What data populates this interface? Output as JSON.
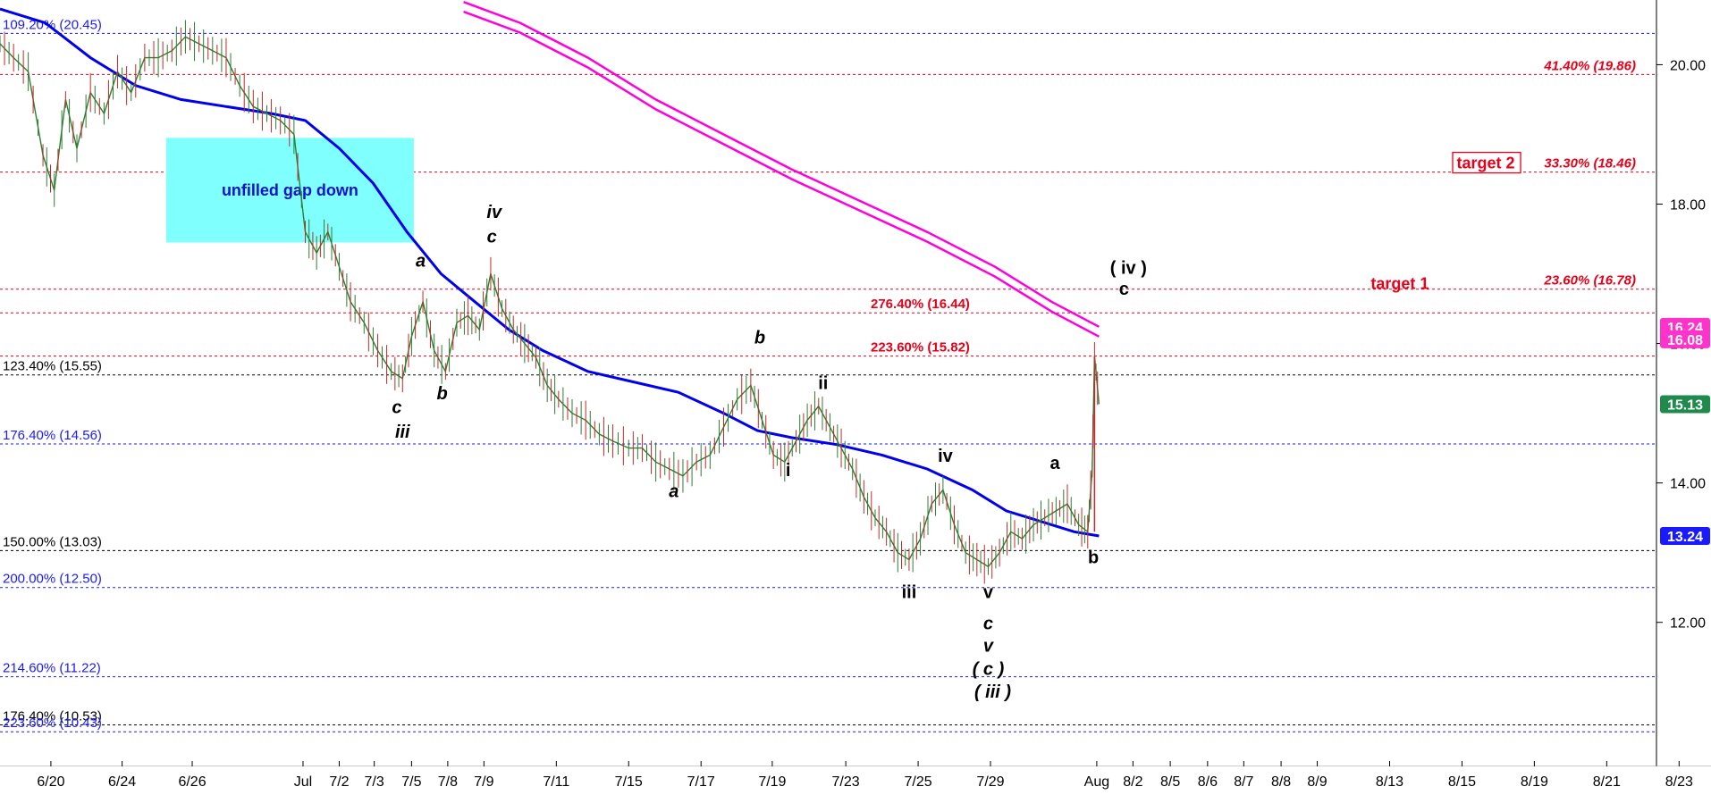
{
  "chart_data": {
    "type": "line",
    "xlim": [
      0,
      1510
    ],
    "ylim": [
      10.3,
      20.8
    ],
    "x_ticks": [
      {
        "x": 45,
        "label": "6/20"
      },
      {
        "x": 108,
        "label": "6/24"
      },
      {
        "x": 170,
        "label": "6/26"
      },
      {
        "x": 268,
        "label": "Jul"
      },
      {
        "x": 300,
        "label": "7/2"
      },
      {
        "x": 331,
        "label": "7/3"
      },
      {
        "x": 364,
        "label": "7/5"
      },
      {
        "x": 396,
        "label": "7/8"
      },
      {
        "x": 428,
        "label": "7/9"
      },
      {
        "x": 492,
        "label": "7/11"
      },
      {
        "x": 556,
        "label": "7/15"
      },
      {
        "x": 620,
        "label": "7/17"
      },
      {
        "x": 683,
        "label": "7/19"
      },
      {
        "x": 748,
        "label": "7/23"
      },
      {
        "x": 812,
        "label": "7/25"
      },
      {
        "x": 876,
        "label": "7/29"
      },
      {
        "x": 970,
        "label": "Aug"
      },
      {
        "x": 1002,
        "label": "8/2"
      },
      {
        "x": 1035,
        "label": "8/5"
      },
      {
        "x": 1068,
        "label": "8/6"
      },
      {
        "x": 1100,
        "label": "8/7"
      },
      {
        "x": 1133,
        "label": "8/8"
      },
      {
        "x": 1165,
        "label": "8/9"
      },
      {
        "x": 1229,
        "label": "8/13"
      },
      {
        "x": 1293,
        "label": "8/15"
      },
      {
        "x": 1357,
        "label": "8/19"
      },
      {
        "x": 1421,
        "label": "8/21"
      },
      {
        "x": 1485,
        "label": "8/23"
      }
    ],
    "y_ticks": [
      {
        "y": 20.0,
        "label": "20.00"
      },
      {
        "y": 18.0,
        "label": "18.00"
      },
      {
        "y": 16.0,
        "label": "16.00"
      },
      {
        "y": 14.0,
        "label": "14.00"
      },
      {
        "y": 12.0,
        "label": "12.00"
      }
    ],
    "fib_levels": [
      {
        "y": 20.45,
        "label": "109.20% (20.45)",
        "color": "#1a1aff",
        "side": "left",
        "italic": false
      },
      {
        "y": 19.86,
        "label": "41.40% (19.86)",
        "color": "#e8001a",
        "side": "right",
        "italic": true
      },
      {
        "y": 18.46,
        "label": "33.30% (18.46)",
        "color": "#e8001a",
        "side": "right",
        "italic": true
      },
      {
        "y": 16.78,
        "label": "23.60% (16.78)",
        "color": "#e8001a",
        "side": "right",
        "italic": true
      },
      {
        "y": 16.44,
        "label": "276.40% (16.44)",
        "color": "#e8001a",
        "side": "mid",
        "italic": false
      },
      {
        "y": 15.82,
        "label": "223.60% (15.82)",
        "color": "#e8001a",
        "side": "mid",
        "italic": false
      },
      {
        "y": 15.55,
        "label": "123.40% (15.55)",
        "color": "#000000",
        "side": "left",
        "italic": false
      },
      {
        "y": 14.56,
        "label": "176.40% (14.56)",
        "color": "#1a1aff",
        "side": "left",
        "italic": false
      },
      {
        "y": 13.03,
        "label": "150.00% (13.03)",
        "color": "#000000",
        "side": "left",
        "italic": false
      },
      {
        "y": 12.5,
        "label": "200.00% (12.50)",
        "color": "#1a1aff",
        "side": "left",
        "italic": false
      },
      {
        "y": 11.22,
        "label": "214.60% (11.22)",
        "color": "#1a1aff",
        "side": "left",
        "italic": false
      },
      {
        "y": 10.53,
        "label": "176.40% (10.53)",
        "color": "#000000",
        "side": "left",
        "italic": false
      },
      {
        "y": 10.43,
        "label": "223.60% (10.43)",
        "color": "#1a1aff",
        "side": "left",
        "italic": false
      }
    ],
    "price_series": [
      [
        0,
        20.3
      ],
      [
        12,
        20.1
      ],
      [
        25,
        19.9
      ],
      [
        38,
        18.7
      ],
      [
        48,
        18.2
      ],
      [
        58,
        19.5
      ],
      [
        68,
        18.8
      ],
      [
        80,
        19.6
      ],
      [
        92,
        19.3
      ],
      [
        104,
        19.9
      ],
      [
        116,
        19.6
      ],
      [
        128,
        20.1
      ],
      [
        140,
        20.1
      ],
      [
        152,
        20.2
      ],
      [
        164,
        20.4
      ],
      [
        176,
        20.3
      ],
      [
        188,
        20.2
      ],
      [
        200,
        20.1
      ],
      [
        212,
        19.7
      ],
      [
        224,
        19.4
      ],
      [
        236,
        19.3
      ],
      [
        248,
        19.2
      ],
      [
        260,
        19.0
      ],
      [
        270,
        17.6
      ],
      [
        280,
        17.3
      ],
      [
        290,
        17.6
      ],
      [
        300,
        17.1
      ],
      [
        310,
        16.6
      ],
      [
        322,
        16.3
      ],
      [
        334,
        15.9
      ],
      [
        346,
        15.6
      ],
      [
        356,
        15.5
      ],
      [
        364,
        16.1
      ],
      [
        374,
        16.6
      ],
      [
        384,
        15.9
      ],
      [
        394,
        15.6
      ],
      [
        404,
        16.3
      ],
      [
        414,
        16.4
      ],
      [
        424,
        16.2
      ],
      [
        434,
        17.0
      ],
      [
        444,
        16.5
      ],
      [
        454,
        16.2
      ],
      [
        464,
        16.0
      ],
      [
        474,
        15.8
      ],
      [
        484,
        15.4
      ],
      [
        494,
        15.2
      ],
      [
        506,
        15.0
      ],
      [
        518,
        14.9
      ],
      [
        530,
        14.7
      ],
      [
        542,
        14.6
      ],
      [
        556,
        14.5
      ],
      [
        568,
        14.5
      ],
      [
        580,
        14.3
      ],
      [
        592,
        14.2
      ],
      [
        604,
        14.1
      ],
      [
        616,
        14.3
      ],
      [
        628,
        14.4
      ],
      [
        640,
        14.8
      ],
      [
        652,
        15.2
      ],
      [
        664,
        15.4
      ],
      [
        674,
        14.9
      ],
      [
        684,
        14.4
      ],
      [
        694,
        14.3
      ],
      [
        704,
        14.6
      ],
      [
        714,
        14.9
      ],
      [
        724,
        15.1
      ],
      [
        734,
        14.8
      ],
      [
        744,
        14.5
      ],
      [
        754,
        14.2
      ],
      [
        764,
        13.8
      ],
      [
        774,
        13.5
      ],
      [
        784,
        13.3
      ],
      [
        794,
        13.0
      ],
      [
        804,
        12.9
      ],
      [
        814,
        13.2
      ],
      [
        824,
        13.7
      ],
      [
        834,
        13.9
      ],
      [
        844,
        13.4
      ],
      [
        854,
        13.0
      ],
      [
        864,
        12.9
      ],
      [
        874,
        12.8
      ],
      [
        884,
        13.0
      ],
      [
        894,
        13.3
      ],
      [
        904,
        13.2
      ],
      [
        914,
        13.4
      ],
      [
        924,
        13.5
      ],
      [
        934,
        13.6
      ],
      [
        944,
        13.7
      ],
      [
        954,
        13.4
      ],
      [
        962,
        13.3
      ],
      [
        966,
        14.2
      ],
      [
        968,
        15.82
      ],
      [
        972,
        15.13
      ]
    ],
    "ma_blue": [
      [
        0,
        20.8
      ],
      [
        40,
        20.6
      ],
      [
        80,
        20.1
      ],
      [
        120,
        19.7
      ],
      [
        160,
        19.5
      ],
      [
        200,
        19.4
      ],
      [
        240,
        19.3
      ],
      [
        270,
        19.2
      ],
      [
        300,
        18.8
      ],
      [
        330,
        18.3
      ],
      [
        360,
        17.6
      ],
      [
        390,
        17.0
      ],
      [
        420,
        16.6
      ],
      [
        450,
        16.2
      ],
      [
        480,
        15.9
      ],
      [
        520,
        15.6
      ],
      [
        560,
        15.45
      ],
      [
        600,
        15.3
      ],
      [
        640,
        15.0
      ],
      [
        670,
        14.75
      ],
      [
        700,
        14.65
      ],
      [
        740,
        14.55
      ],
      [
        780,
        14.4
      ],
      [
        820,
        14.2
      ],
      [
        860,
        13.9
      ],
      [
        890,
        13.6
      ],
      [
        920,
        13.45
      ],
      [
        950,
        13.3
      ],
      [
        972,
        13.24
      ]
    ],
    "ma_magenta": [
      [
        410,
        20.9
      ],
      [
        460,
        20.6
      ],
      [
        520,
        20.1
      ],
      [
        580,
        19.5
      ],
      [
        640,
        19.0
      ],
      [
        700,
        18.5
      ],
      [
        760,
        18.05
      ],
      [
        820,
        17.6
      ],
      [
        880,
        17.1
      ],
      [
        930,
        16.6
      ],
      [
        972,
        16.24
      ]
    ],
    "ma_magenta_offset": 0.14,
    "gap_zone": {
      "x0": 147,
      "x1": 366,
      "y0": 17.45,
      "y1": 18.95,
      "label": "unfilled gap down",
      "fill": "#80ffff"
    },
    "targets": [
      {
        "label": "target 1",
        "x": 1238,
        "y": 16.82,
        "boxed": false
      },
      {
        "label": "target 2",
        "x": 1314,
        "y": 18.55,
        "boxed": true
      }
    ],
    "wave_labels": [
      {
        "text": "iv",
        "x": 437,
        "y": 17.8,
        "italic": true
      },
      {
        "text": "c",
        "x": 435,
        "y": 17.45,
        "italic": true
      },
      {
        "text": "a",
        "x": 372,
        "y": 17.1,
        "italic": true
      },
      {
        "text": "c",
        "x": 351,
        "y": 15.0,
        "italic": true
      },
      {
        "text": "iii",
        "x": 356,
        "y": 14.65,
        "italic": true
      },
      {
        "text": "b",
        "x": 391,
        "y": 15.2,
        "italic": true
      },
      {
        "text": "b",
        "x": 672,
        "y": 16.0,
        "italic": true
      },
      {
        "text": "a",
        "x": 596,
        "y": 13.8,
        "italic": true
      },
      {
        "text": "ii",
        "x": 728,
        "y": 15.35,
        "italic": false
      },
      {
        "text": "i",
        "x": 697,
        "y": 14.1,
        "italic": false
      },
      {
        "text": "iv",
        "x": 836,
        "y": 14.3,
        "italic": false
      },
      {
        "text": "iii",
        "x": 804,
        "y": 12.35,
        "italic": false
      },
      {
        "text": "v",
        "x": 874,
        "y": 12.35,
        "italic": false
      },
      {
        "text": "c",
        "x": 874,
        "y": 11.9,
        "italic": true
      },
      {
        "text": "v",
        "x": 874,
        "y": 11.58,
        "italic": true
      },
      {
        "text": "( c )",
        "x": 874,
        "y": 11.25,
        "italic": true
      },
      {
        "text": "( iii )",
        "x": 878,
        "y": 10.92,
        "italic": true
      },
      {
        "text": "a",
        "x": 933,
        "y": 14.2,
        "italic": false
      },
      {
        "text": "b",
        "x": 967,
        "y": 12.85,
        "italic": false
      },
      {
        "text": "( iv )",
        "x": 998,
        "y": 17.0,
        "italic": false
      },
      {
        "text": "c",
        "x": 994,
        "y": 16.7,
        "italic": false
      }
    ],
    "price_tags": [
      {
        "y": 16.24,
        "label": "16.24",
        "color": "#ff33cc"
      },
      {
        "y": 16.08,
        "label": "16.08",
        "color": "#ff33cc"
      },
      {
        "y": 15.13,
        "label": "15.13",
        "color": "#1f8a4c"
      },
      {
        "y": 13.24,
        "label": "13.24",
        "color": "#1a1aff"
      }
    ]
  }
}
